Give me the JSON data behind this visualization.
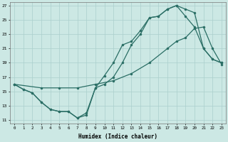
{
  "xlabel": "Humidex (Indice chaleur)",
  "bg_color": "#cce8e4",
  "grid_color": "#aacfcc",
  "line_color": "#2a6e65",
  "xlim": [
    -0.5,
    23.5
  ],
  "ylim": [
    10.5,
    27.5
  ],
  "xticks": [
    0,
    1,
    2,
    3,
    4,
    5,
    6,
    7,
    8,
    9,
    10,
    11,
    12,
    13,
    14,
    15,
    16,
    17,
    18,
    19,
    20,
    21,
    22,
    23
  ],
  "yticks": [
    11,
    13,
    15,
    17,
    19,
    21,
    23,
    25,
    27
  ],
  "line1_x": [
    0,
    1,
    2,
    3,
    4,
    5,
    6,
    7,
    8,
    9,
    10,
    11,
    12,
    13,
    14,
    15,
    16,
    17,
    18,
    19,
    20,
    21,
    22,
    23
  ],
  "line1_y": [
    16,
    15.3,
    14.8,
    13.5,
    12.5,
    12.2,
    12.2,
    11.3,
    11.7,
    15.5,
    17.2,
    19,
    21.5,
    22,
    23.5,
    25.3,
    25.5,
    26.5,
    27,
    26.5,
    26,
    21,
    19.5,
    19
  ],
  "line2_x": [
    0,
    1,
    2,
    3,
    4,
    5,
    6,
    7,
    8,
    9,
    10,
    11,
    12,
    13,
    14,
    15,
    16,
    17,
    18,
    19,
    20,
    21,
    22,
    23
  ],
  "line2_y": [
    16,
    15.3,
    14.8,
    13.5,
    12.5,
    12.2,
    12.2,
    11.3,
    12.0,
    15.5,
    16.0,
    17.0,
    19.0,
    21.5,
    23,
    25.3,
    25.5,
    26.5,
    27,
    25.5,
    24,
    21,
    19.5,
    19
  ],
  "line3_x": [
    0,
    3,
    5,
    7,
    9,
    11,
    13,
    15,
    17,
    18,
    19,
    20,
    21,
    22,
    23
  ],
  "line3_y": [
    16,
    15.5,
    15.5,
    15.5,
    16.0,
    16.5,
    17.5,
    19.0,
    21.0,
    22.0,
    22.5,
    23.8,
    24,
    21,
    18.8
  ]
}
